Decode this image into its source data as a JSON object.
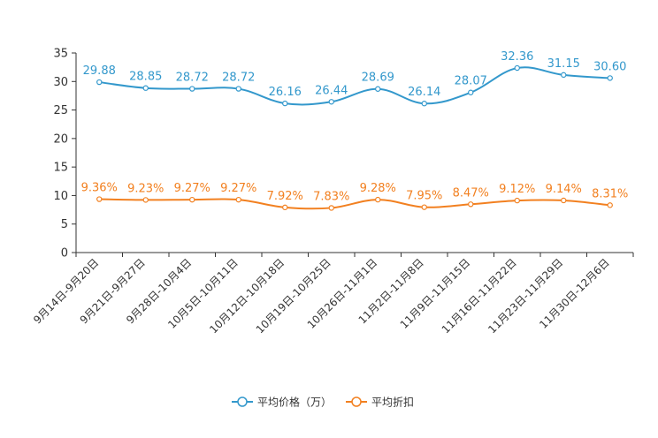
{
  "chart_data": {
    "type": "line",
    "categories": [
      "9月14日-9月20日",
      "9月21日-9月27日",
      "9月28日-10月4日",
      "10月5日-10月11日",
      "10月12日-10月18日",
      "10月19日-10月25日",
      "10月26日-11月1日",
      "11月2日-11月8日",
      "11月9日-11月15日",
      "11月16日-11月22日",
      "11月23日-11月29日",
      "11月30日-12月6日"
    ],
    "series": [
      {
        "name": "平均价格（万）",
        "color": "#3398cc",
        "values": [
          29.88,
          28.85,
          28.72,
          28.72,
          26.16,
          26.44,
          28.69,
          26.14,
          28.07,
          32.36,
          31.15,
          30.6
        ],
        "labels": [
          "29.88",
          "28.85",
          "28.72",
          "28.72",
          "26.16",
          "26.44",
          "28.69",
          "26.14",
          "28.07",
          "32.36",
          "31.15",
          "30.60"
        ]
      },
      {
        "name": "平均折扣",
        "color": "#f28020",
        "values": [
          9.36,
          9.23,
          9.27,
          9.27,
          7.92,
          7.83,
          9.28,
          7.95,
          8.47,
          9.12,
          9.14,
          8.31
        ],
        "labels": [
          "9.36%",
          "9.23%",
          "9.27%",
          "9.27%",
          "7.92%",
          "7.83%",
          "9.28%",
          "7.95%",
          "8.47%",
          "9.12%",
          "9.14%",
          "8.31%"
        ]
      }
    ],
    "yticks": [
      "0",
      "5",
      "10",
      "15",
      "20",
      "25",
      "30",
      "35"
    ],
    "ylim": [
      0,
      35
    ],
    "legend": "bottom-center"
  }
}
